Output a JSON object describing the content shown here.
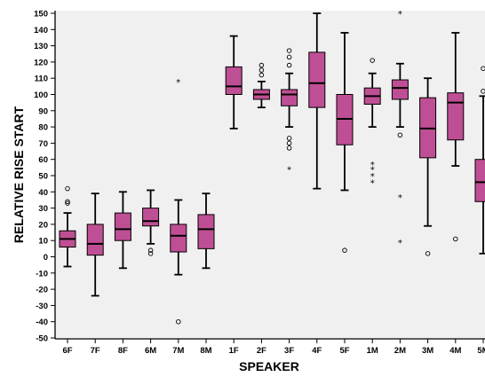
{
  "chart_data": {
    "type": "boxplot",
    "title": "",
    "xlabel": "SPEAKER",
    "ylabel": "RELATIVE RISE START",
    "ylim": [
      -50,
      150
    ],
    "yticks": [
      -50,
      -40,
      -30,
      -20,
      -10,
      0,
      10,
      20,
      30,
      40,
      50,
      60,
      70,
      80,
      90,
      100,
      110,
      120,
      130,
      140,
      150
    ],
    "grid": false,
    "legend": "none",
    "box_color": "#bf4f94",
    "plot_background": "#f0f0f0",
    "categories": [
      "6F",
      "7F",
      "8F",
      "6M",
      "7M",
      "8M",
      "1F",
      "2F",
      "3F",
      "4F",
      "5F",
      "1M",
      "2M",
      "3M",
      "4M",
      "5M"
    ],
    "boxes": [
      {
        "label": "6F",
        "whisker_low": -6,
        "q1": 6,
        "median": 11,
        "q3": 16,
        "whisker_high": 27,
        "outliers": [
          33,
          34,
          42
        ],
        "extremes": []
      },
      {
        "label": "7F",
        "whisker_low": -24,
        "q1": 1,
        "median": 8,
        "q3": 20,
        "whisker_high": 39,
        "outliers": [],
        "extremes": []
      },
      {
        "label": "8F",
        "whisker_low": -7,
        "q1": 10,
        "median": 17,
        "q3": 27,
        "whisker_high": 40,
        "outliers": [],
        "extremes": []
      },
      {
        "label": "6M",
        "whisker_low": 8,
        "q1": 19,
        "median": 22,
        "q3": 30,
        "whisker_high": 41,
        "outliers": [
          2,
          4
        ],
        "extremes": []
      },
      {
        "label": "7M",
        "whisker_low": -11,
        "q1": 3,
        "median": 13,
        "q3": 20,
        "whisker_high": 35,
        "outliers": [
          -40
        ],
        "extremes": [
          108
        ]
      },
      {
        "label": "8M",
        "whisker_low": -7,
        "q1": 5,
        "median": 17,
        "q3": 26,
        "whisker_high": 39,
        "outliers": [],
        "extremes": []
      },
      {
        "label": "1F",
        "whisker_low": 79,
        "q1": 100,
        "median": 105,
        "q3": 117,
        "whisker_high": 136,
        "outliers": [],
        "extremes": []
      },
      {
        "label": "2F",
        "whisker_low": 92,
        "q1": 97,
        "median": 100,
        "q3": 103,
        "whisker_high": 108,
        "outliers": [
          112,
          115,
          118
        ],
        "extremes": []
      },
      {
        "label": "3F",
        "whisker_low": 80,
        "q1": 93,
        "median": 100,
        "q3": 103,
        "whisker_high": 113,
        "outliers": [
          67,
          70,
          73,
          118,
          123,
          127
        ],
        "extremes": [
          54
        ]
      },
      {
        "label": "4F",
        "whisker_low": 42,
        "q1": 92,
        "median": 107,
        "q3": 126,
        "whisker_high": 150,
        "outliers": [],
        "extremes": []
      },
      {
        "label": "5F",
        "whisker_low": 41,
        "q1": 69,
        "median": 85,
        "q3": 100,
        "whisker_high": 138,
        "outliers": [
          4
        ],
        "extremes": []
      },
      {
        "label": "1M",
        "whisker_low": 80,
        "q1": 94,
        "median": 99,
        "q3": 104,
        "whisker_high": 113,
        "outliers": [
          121
        ],
        "extremes": [
          46,
          50,
          54,
          57
        ]
      },
      {
        "label": "2M",
        "whisker_low": 80,
        "q1": 97,
        "median": 104,
        "q3": 109,
        "whisker_high": 119,
        "outliers": [
          75
        ],
        "extremes": [
          9,
          37,
          150
        ]
      },
      {
        "label": "3M",
        "whisker_low": 19,
        "q1": 61,
        "median": 79,
        "q3": 98,
        "whisker_high": 110,
        "outliers": [
          2
        ],
        "extremes": []
      },
      {
        "label": "4M",
        "whisker_low": 56,
        "q1": 72,
        "median": 95,
        "q3": 101,
        "whisker_high": 138,
        "outliers": [
          11
        ],
        "extremes": []
      },
      {
        "label": "5M",
        "whisker_low": 2,
        "q1": 34,
        "median": 46,
        "q3": 60,
        "whisker_high": 99,
        "outliers": [
          102,
          116
        ],
        "extremes": []
      }
    ]
  }
}
